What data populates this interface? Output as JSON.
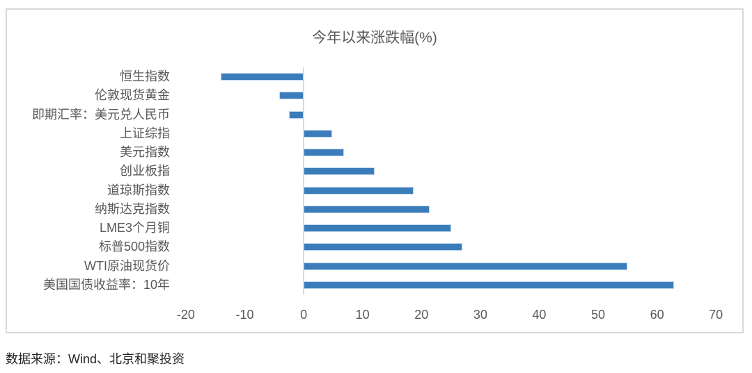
{
  "chart": {
    "title": "今年以来涨跌幅(%)",
    "source_note": "数据来源：Wind、北京和聚投资",
    "colors": {
      "bar_fill": "#3b7dba",
      "bar_border": "#bdd7ee",
      "axis_line": "#d9d9d9",
      "frame_border": "#d9d9d9",
      "label_text": "#595959",
      "source_text": "#262626"
    }
  },
  "chart_data": {
    "type": "bar",
    "orientation": "horizontal",
    "title": "今年以来涨跌幅(%)",
    "categories": [
      "恒生指数",
      "伦敦现货黄金",
      "即期汇率：美元兑人民币",
      "上证综指",
      "美元指数",
      "创业板指",
      "道琼斯指数",
      "纳斯达克指数",
      "LME3个月铜",
      "标普500指数",
      "WTI原油现货价",
      "美国国债收益率：10年"
    ],
    "values": [
      -14.1,
      -4.2,
      -2.5,
      4.8,
      6.9,
      12.0,
      18.7,
      21.4,
      25.0,
      26.9,
      55.0,
      62.9
    ],
    "xlabel": "",
    "ylabel": "",
    "xlim": [
      -22,
      74
    ],
    "xticks": [
      -20,
      -10,
      0,
      10,
      20,
      30,
      40,
      50,
      60,
      70
    ],
    "grid": false,
    "legend": false,
    "source": "数据来源：Wind、北京和聚投资"
  }
}
